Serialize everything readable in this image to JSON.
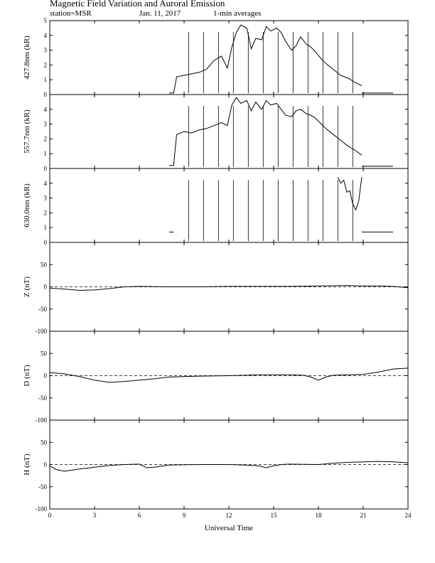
{
  "header": {
    "title": "Magnetic Field Variation and Auroral Emission",
    "station": "station=MSR",
    "date": "Jan. 11, 2017",
    "averaging": "1-min averages"
  },
  "chart_data": {
    "type": "line",
    "xlabel": "Universal Time",
    "xlim": [
      0,
      24
    ],
    "xticks": [
      0,
      3,
      6,
      9,
      12,
      15,
      18,
      21,
      24
    ],
    "panels": [
      {
        "ylabel": "427.8nm (kR)",
        "ylim": [
          0,
          5
        ],
        "yticks": [
          0,
          1,
          2,
          3,
          4,
          5
        ],
        "series": [
          {
            "x": [
              8.0,
              8.3,
              8.5,
              9.0,
              9.5,
              10.0,
              10.5,
              11.0,
              11.5,
              11.9,
              12.2,
              12.5,
              12.8,
              13.2,
              13.5,
              13.8,
              14.2,
              14.5,
              14.8,
              15.2,
              15.5,
              15.8,
              16.2,
              16.5,
              16.8,
              17.2,
              17.5,
              17.8,
              18.2,
              18.5,
              19.0,
              19.5,
              20.0,
              20.5,
              20.9
            ],
            "y": [
              0.1,
              0.1,
              1.2,
              1.3,
              1.4,
              1.5,
              1.7,
              2.3,
              2.6,
              1.8,
              3.2,
              4.2,
              4.7,
              4.5,
              3.1,
              3.8,
              3.7,
              4.6,
              4.3,
              4.5,
              4.2,
              3.6,
              3.0,
              3.3,
              3.9,
              3.4,
              3.2,
              2.9,
              2.4,
              2.1,
              1.7,
              1.3,
              1.1,
              0.8,
              0.6
            ]
          },
          {
            "x": [
              20.9,
              21.5,
              22.0,
              22.5,
              23.0
            ],
            "y": [
              0.1,
              0.1,
              0.1,
              0.1,
              0.1
            ]
          }
        ]
      },
      {
        "ylabel": "557.7nm (kR)",
        "ylim": [
          0,
          5
        ],
        "yticks": [
          0,
          1,
          2,
          3,
          4
        ],
        "series": [
          {
            "x": [
              8.0,
              8.3,
              8.5,
              9.0,
              9.5,
              10.0,
              10.5,
              11.0,
              11.5,
              11.9,
              12.2,
              12.5,
              12.8,
              13.2,
              13.5,
              13.8,
              14.2,
              14.5,
              14.8,
              15.2,
              15.5,
              15.8,
              16.2,
              16.5,
              16.8,
              17.2,
              17.5,
              17.8,
              18.2,
              18.5,
              19.0,
              19.5,
              20.0,
              20.5,
              20.9
            ],
            "y": [
              0.2,
              0.2,
              2.3,
              2.5,
              2.4,
              2.6,
              2.7,
              2.9,
              3.1,
              2.9,
              4.3,
              4.8,
              4.4,
              4.6,
              3.9,
              4.5,
              4.0,
              4.6,
              4.3,
              4.4,
              4.0,
              3.6,
              3.5,
              3.9,
              4.0,
              3.7,
              3.6,
              3.4,
              3.0,
              2.7,
              2.3,
              1.9,
              1.5,
              1.2,
              0.9
            ]
          },
          {
            "x": [
              20.9,
              21.5,
              22.0,
              22.5,
              23.0
            ],
            "y": [
              0.15,
              0.15,
              0.15,
              0.15,
              0.15
            ]
          }
        ]
      },
      {
        "ylabel": "630.0nm (kR)",
        "ylim": [
          0,
          5
        ],
        "yticks": [
          0,
          1,
          2,
          3,
          4
        ],
        "series": [
          {
            "x": [
              8.0,
              8.3
            ],
            "y": [
              0.7,
              0.7
            ]
          },
          {
            "x": [
              19.3,
              19.5,
              19.7,
              19.9,
              20.1,
              20.3,
              20.5,
              20.7,
              20.9
            ],
            "y": [
              4.4,
              4.0,
              4.2,
              3.4,
              3.5,
              2.6,
              2.2,
              2.8,
              4.4
            ]
          },
          {
            "x": [
              20.9,
              21.5,
              22.0,
              22.5,
              23.0
            ],
            "y": [
              0.7,
              0.7,
              0.7,
              0.7,
              0.7
            ]
          }
        ]
      },
      {
        "ylabel": "Z (nT)",
        "ylim": [
          -100,
          100
        ],
        "yticks": [
          -100,
          -50,
          0,
          50
        ],
        "zero_line": "dashed",
        "series": [
          {
            "x": [
              0,
              1,
              2,
              3,
              4,
              5,
              6,
              8,
              10,
              12,
              14,
              16,
              18,
              20,
              21,
              22,
              23,
              24
            ],
            "y": [
              -3,
              -5,
              -8,
              -7,
              -4,
              0,
              1,
              0,
              0,
              1,
              1,
              1,
              2,
              3,
              2,
              2,
              1,
              -2
            ]
          }
        ]
      },
      {
        "ylabel": "D (nT)",
        "ylim": [
          -100,
          100
        ],
        "yticks": [
          -100,
          -50,
          0,
          50
        ],
        "zero_line": "dashed",
        "series": [
          {
            "x": [
              0,
              1,
              2,
              3,
              4,
              5,
              6,
              7,
              8,
              10,
              12,
              13,
              14,
              15,
              16,
              17,
              17.5,
              18,
              18.5,
              19,
              20,
              21,
              22,
              23,
              24
            ],
            "y": [
              7,
              4,
              -2,
              -10,
              -15,
              -13,
              -10,
              -7,
              -3,
              -1,
              0,
              1,
              2,
              2,
              2,
              1,
              -3,
              -10,
              -3,
              1,
              2,
              3,
              8,
              15,
              17
            ]
          }
        ]
      },
      {
        "ylabel": "H (nT)",
        "ylim": [
          -100,
          100
        ],
        "yticks": [
          -100,
          -50,
          0,
          50
        ],
        "zero_line": "dashed",
        "series": [
          {
            "x": [
              0,
              0.5,
              1,
              2,
              3,
              4,
              5,
              6,
              6.5,
              7,
              8,
              10,
              12,
              13,
              14,
              14.5,
              15,
              15.5,
              16,
              18,
              19,
              20,
              21,
              22,
              23,
              24
            ],
            "y": [
              -3,
              -12,
              -15,
              -10,
              -6,
              -2,
              0,
              1,
              -7,
              -6,
              -1,
              0,
              0,
              -1,
              -3,
              -7,
              -3,
              0,
              1,
              0,
              3,
              5,
              6,
              7,
              6,
              4
            ]
          }
        ]
      }
    ]
  }
}
